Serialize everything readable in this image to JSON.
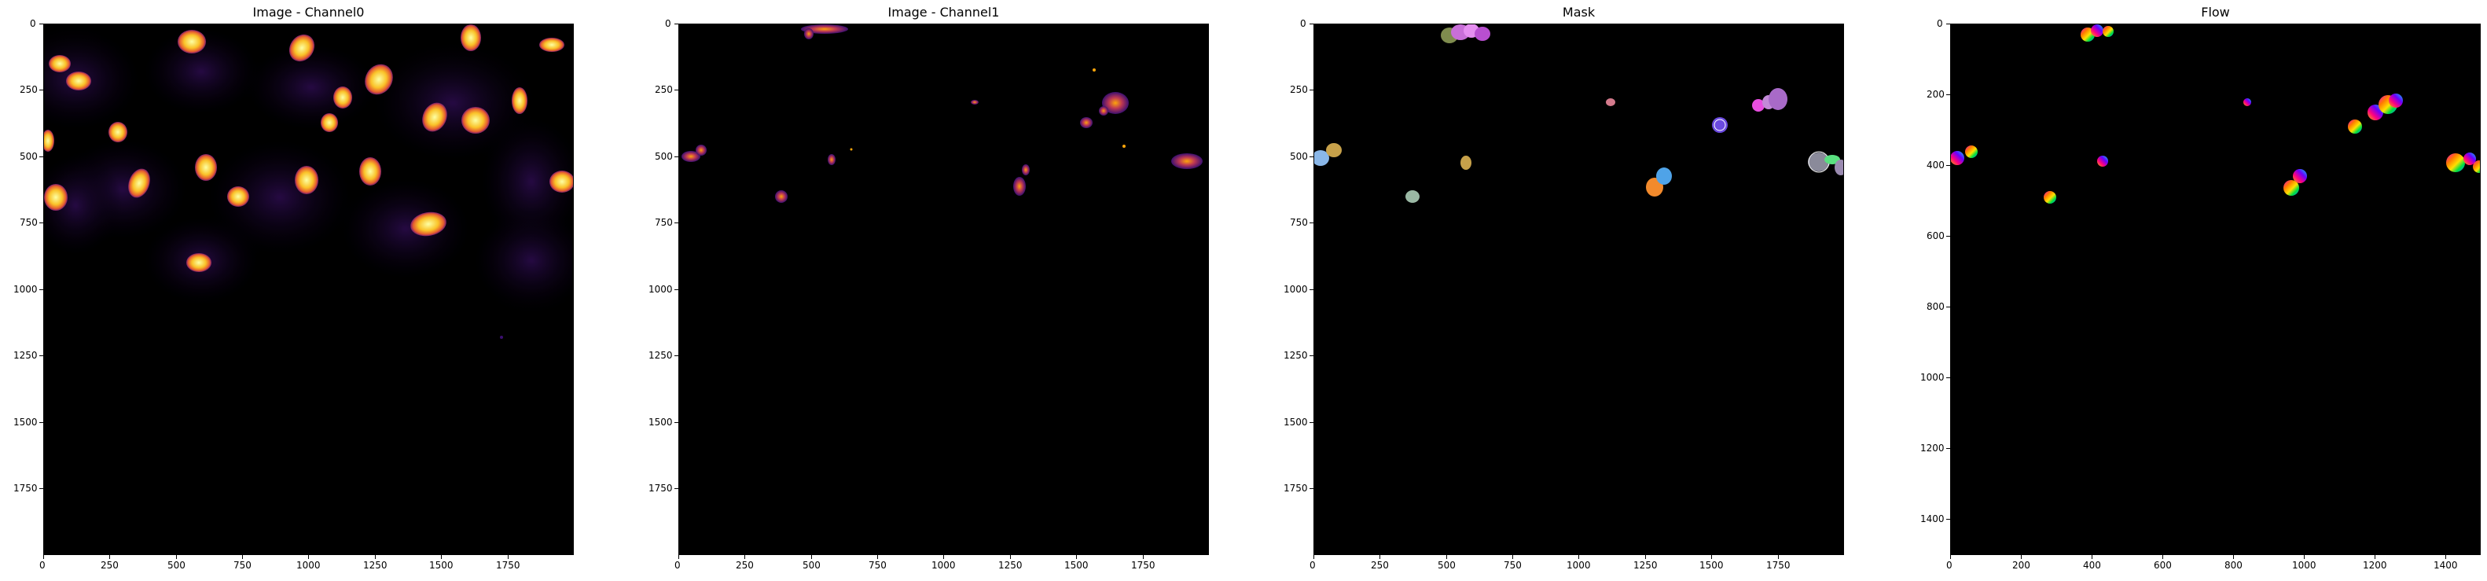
{
  "figure": {
    "panels": [
      {
        "id": "channel0",
        "title": "Image - Channel0",
        "x_ticks": [
          "0",
          "250",
          "500",
          "750",
          "1000",
          "1250",
          "1500",
          "1750"
        ],
        "y_ticks": [
          "0",
          "250",
          "500",
          "750",
          "1000",
          "1250",
          "1500",
          "1750"
        ],
        "colormap": "inferno"
      },
      {
        "id": "channel1",
        "title": "Image - Channel1",
        "x_ticks": [
          "0",
          "250",
          "500",
          "750",
          "1000",
          "1250",
          "1500",
          "1750"
        ],
        "y_ticks": [
          "0",
          "250",
          "500",
          "750",
          "1000",
          "1250",
          "1500",
          "1750"
        ],
        "colormap": "inferno"
      },
      {
        "id": "mask",
        "title": "Mask",
        "x_ticks": [
          "0",
          "250",
          "500",
          "750",
          "1000",
          "1250",
          "1500",
          "1750"
        ],
        "y_ticks": [
          "0",
          "250",
          "500",
          "750",
          "1000",
          "1250",
          "1500",
          "1750"
        ],
        "colormap": "random-labels"
      },
      {
        "id": "flow",
        "title": "Flow",
        "x_ticks": [
          "0",
          "200",
          "400",
          "600",
          "800",
          "1000",
          "1200",
          "1400"
        ],
        "y_ticks": [
          "0",
          "200",
          "400",
          "600",
          "800",
          "1000",
          "1200",
          "1400"
        ],
        "colormap": "hsv-flow"
      }
    ]
  }
}
